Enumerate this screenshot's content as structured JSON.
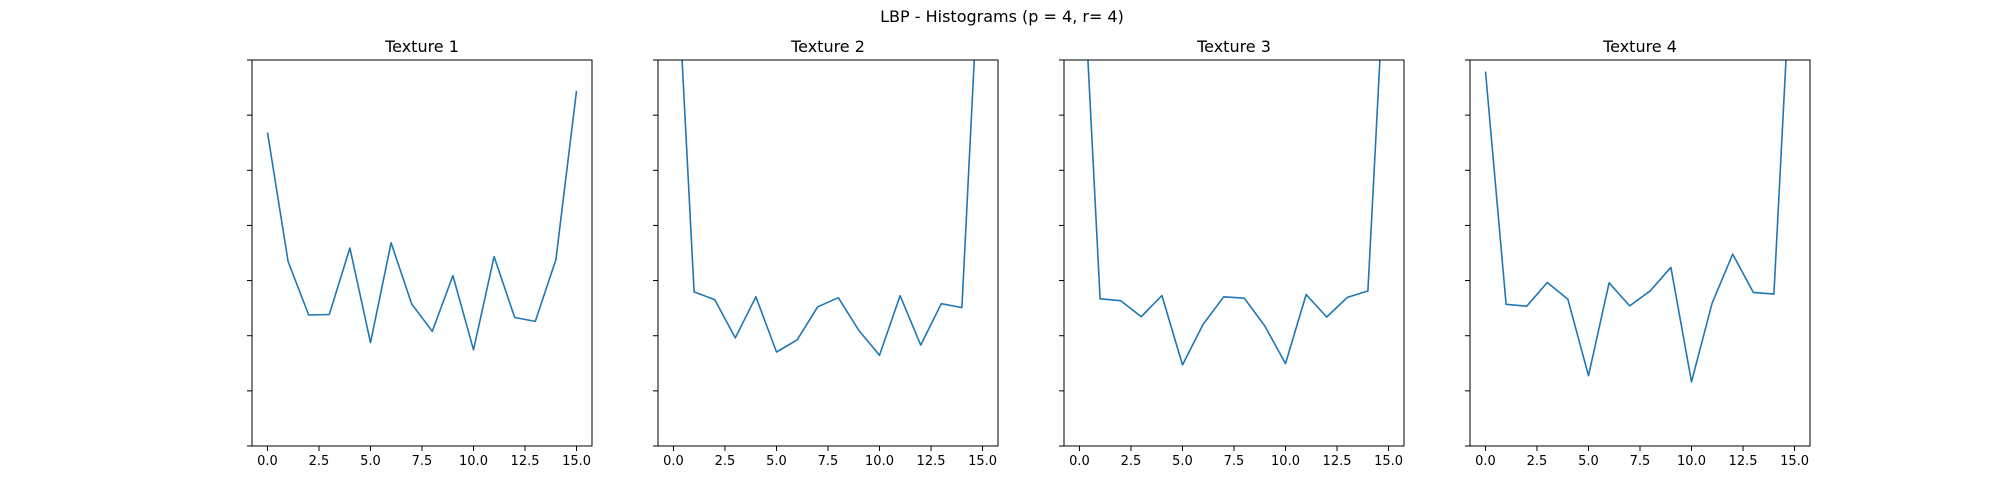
{
  "figure": {
    "title": "LBP - Histograms (p = 4, r= 4)"
  },
  "colors": {
    "line": "#1f77b4",
    "background": "#ffffff",
    "axes": "#000000"
  },
  "chart_data": [
    {
      "type": "line",
      "title": "Texture 1",
      "xlabel": "",
      "ylabel": "",
      "xlim": [
        -0.75,
        15.75
      ],
      "ylim": [
        0,
        0.14
      ],
      "xticks": [
        0.0,
        2.5,
        5.0,
        7.5,
        10.0,
        12.5,
        15.0
      ],
      "xtick_labels": [
        "0.0",
        "2.5",
        "5.0",
        "7.5",
        "10.0",
        "12.5",
        "15.0"
      ],
      "yticks": [
        0,
        0.02,
        0.04,
        0.06,
        0.08,
        0.1,
        0.12,
        0.14
      ],
      "ytick_labels_visible": false,
      "grid": false,
      "x": [
        0,
        1,
        2,
        3,
        4,
        5,
        6,
        7,
        8,
        9,
        10,
        11,
        12,
        13,
        14,
        15
      ],
      "values": [
        0.1137,
        0.0669,
        0.0475,
        0.0477,
        0.0718,
        0.0375,
        0.0737,
        0.0515,
        0.0416,
        0.0618,
        0.0349,
        0.0687,
        0.0466,
        0.0452,
        0.0676,
        0.1288
      ]
    },
    {
      "type": "line",
      "title": "Texture 2",
      "xlabel": "",
      "ylabel": "",
      "xlim": [
        -0.75,
        15.75
      ],
      "ylim": [
        0,
        0.14
      ],
      "xticks": [
        0.0,
        2.5,
        5.0,
        7.5,
        10.0,
        12.5,
        15.0
      ],
      "xtick_labels": [
        "0.0",
        "2.5",
        "5.0",
        "7.5",
        "10.0",
        "12.5",
        "15.0"
      ],
      "yticks": [
        0,
        0.02,
        0.04,
        0.06,
        0.08,
        0.1,
        0.12,
        0.14
      ],
      "ytick_labels_visible": false,
      "grid": false,
      "x": [
        0,
        1,
        2,
        3,
        4,
        5,
        6,
        7,
        8,
        9,
        10,
        11,
        12,
        13,
        14,
        15
      ],
      "values": [
        0.2,
        0.0559,
        0.0531,
        0.0392,
        0.0541,
        0.0341,
        0.0385,
        0.0505,
        0.0538,
        0.0419,
        0.0329,
        0.0545,
        0.0366,
        0.0516,
        0.0502,
        0.2
      ]
    },
    {
      "type": "line",
      "title": "Texture 3",
      "xlabel": "",
      "ylabel": "",
      "xlim": [
        -0.75,
        15.75
      ],
      "ylim": [
        0,
        0.14
      ],
      "xticks": [
        0.0,
        2.5,
        5.0,
        7.5,
        10.0,
        12.5,
        15.0
      ],
      "xtick_labels": [
        "0.0",
        "2.5",
        "5.0",
        "7.5",
        "10.0",
        "12.5",
        "15.0"
      ],
      "yticks": [
        0,
        0.02,
        0.04,
        0.06,
        0.08,
        0.1,
        0.12,
        0.14
      ],
      "ytick_labels_visible": false,
      "grid": false,
      "x": [
        0,
        1,
        2,
        3,
        4,
        5,
        6,
        7,
        8,
        9,
        10,
        11,
        12,
        13,
        14,
        15
      ],
      "values": [
        0.2,
        0.0534,
        0.0527,
        0.0469,
        0.0546,
        0.0294,
        0.0441,
        0.0541,
        0.0536,
        0.0435,
        0.0299,
        0.0549,
        0.0468,
        0.0539,
        0.0562,
        0.2
      ]
    },
    {
      "type": "line",
      "title": "Texture 4",
      "xlabel": "",
      "ylabel": "",
      "xlim": [
        -0.75,
        15.75
      ],
      "ylim": [
        0,
        0.14
      ],
      "xticks": [
        0.0,
        2.5,
        5.0,
        7.5,
        10.0,
        12.5,
        15.0
      ],
      "xtick_labels": [
        "0.0",
        "2.5",
        "5.0",
        "7.5",
        "10.0",
        "12.5",
        "15.0"
      ],
      "yticks": [
        0,
        0.02,
        0.04,
        0.06,
        0.08,
        0.1,
        0.12,
        0.14
      ],
      "ytick_labels_visible": false,
      "grid": false,
      "x": [
        0,
        1,
        2,
        3,
        4,
        5,
        6,
        7,
        8,
        9,
        10,
        11,
        12,
        13,
        14,
        15
      ],
      "values": [
        0.1358,
        0.0514,
        0.0507,
        0.0593,
        0.0532,
        0.0255,
        0.0592,
        0.0508,
        0.0563,
        0.0648,
        0.0233,
        0.0518,
        0.0696,
        0.0557,
        0.0551,
        0.2
      ]
    }
  ]
}
